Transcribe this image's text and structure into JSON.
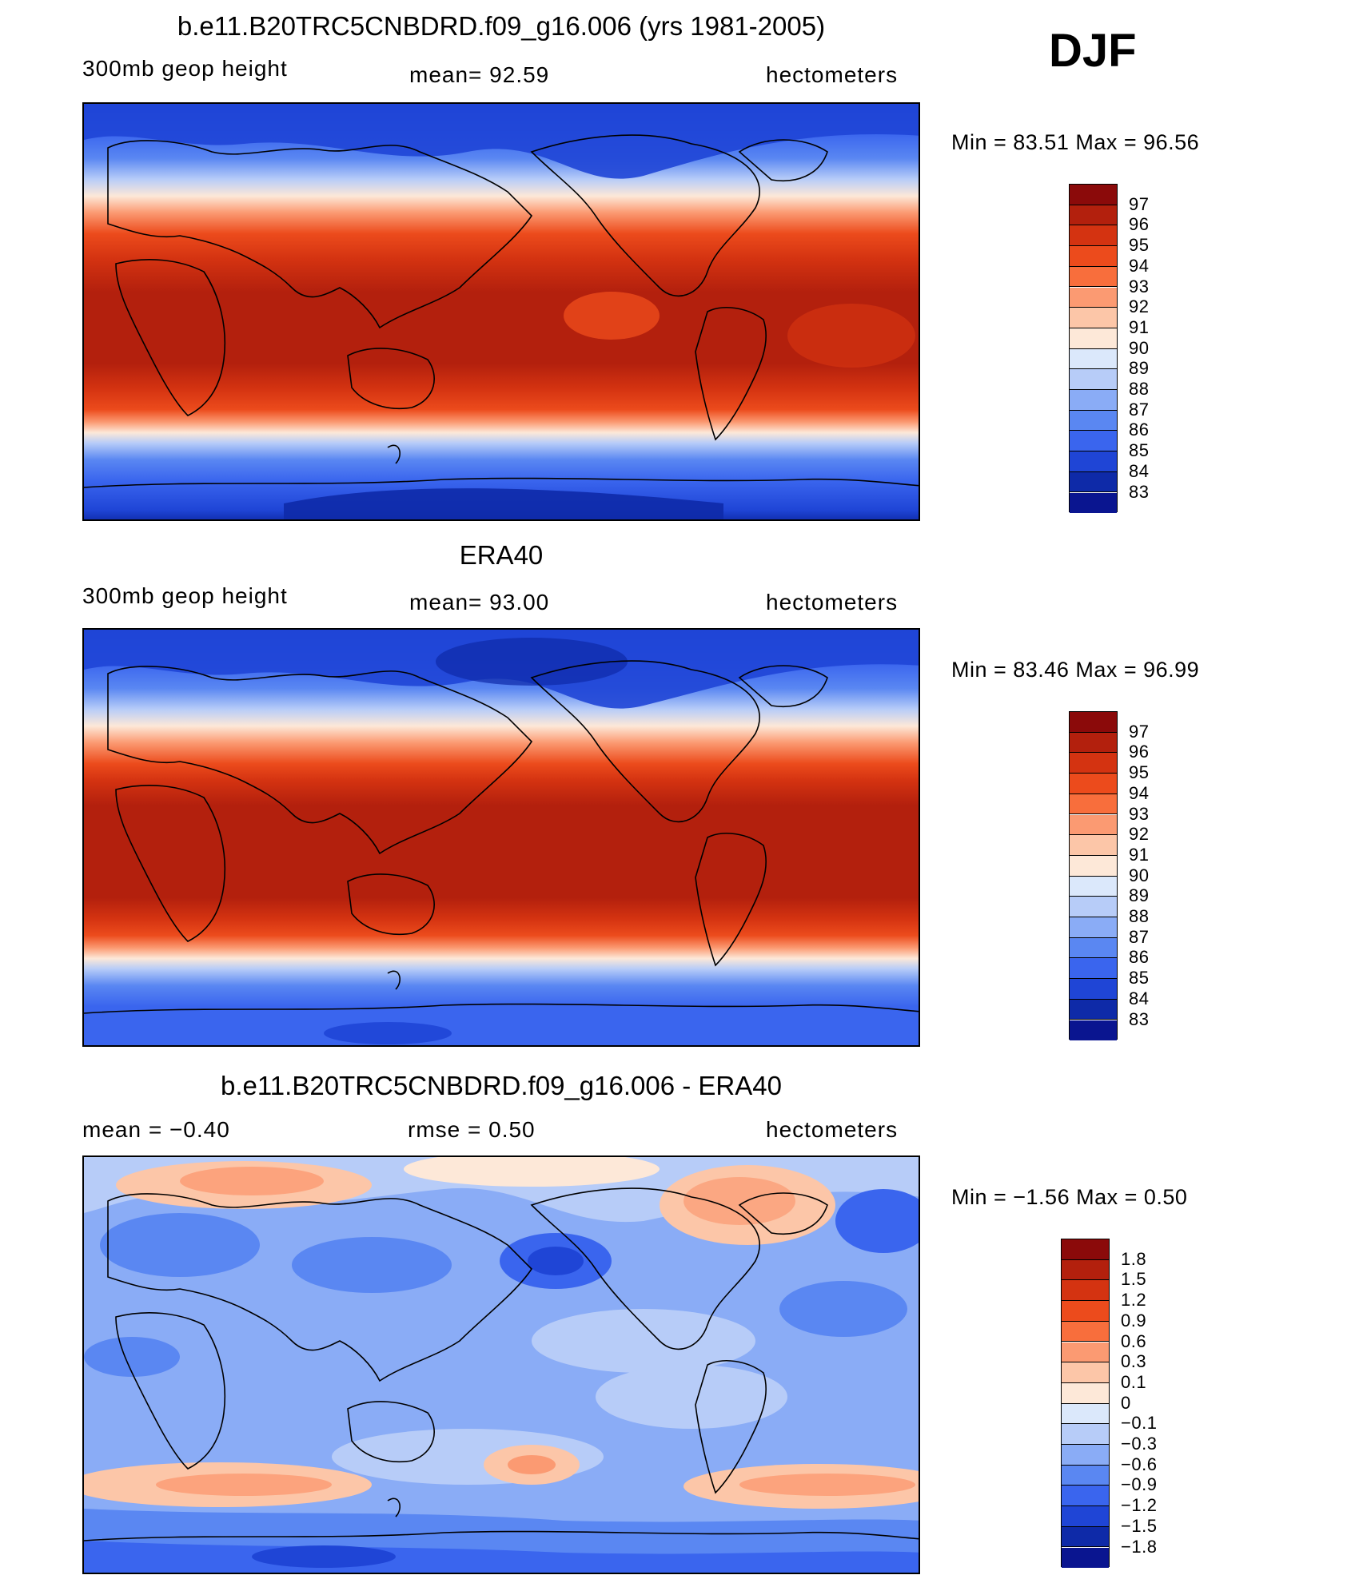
{
  "season": "DJF",
  "panels": [
    {
      "title": "b.e11.B20TRC5CNBDRD.f09_g16.006 (yrs 1981-2005)",
      "left_label": "300mb  geop  height",
      "center_label": "mean=   92.59",
      "right_label": "hectometers",
      "minmax": "Min  =    83.51  Max  =    96.56",
      "colorbar": {
        "labels": [
          "97",
          "96",
          "95",
          "94",
          "93",
          "92",
          "91",
          "90",
          "89",
          "88",
          "87",
          "86",
          "85",
          "84",
          "83"
        ],
        "colors": [
          "#8b0a0a",
          "#b3200d",
          "#d43311",
          "#ec4b1c",
          "#f86e3c",
          "#fb9a72",
          "#fcc6a8",
          "#fde8d8",
          "#dbe8fb",
          "#b7ccf8",
          "#8aacf6",
          "#5a87f2",
          "#3a65ee",
          "#1f45d6",
          "#0e2aa8",
          "#0a1590"
        ]
      }
    },
    {
      "title": "ERA40",
      "left_label": "300mb  geop  height",
      "center_label": "mean=   93.00",
      "right_label": "hectometers",
      "minmax": "Min  =    83.46  Max  =    96.99",
      "colorbar": {
        "labels": [
          "97",
          "96",
          "95",
          "94",
          "93",
          "92",
          "91",
          "90",
          "89",
          "88",
          "87",
          "86",
          "85",
          "84",
          "83"
        ],
        "colors": [
          "#8b0a0a",
          "#b3200d",
          "#d43311",
          "#ec4b1c",
          "#f86e3c",
          "#fb9a72",
          "#fcc6a8",
          "#fde8d8",
          "#dbe8fb",
          "#b7ccf8",
          "#8aacf6",
          "#5a87f2",
          "#3a65ee",
          "#1f45d6",
          "#0e2aa8",
          "#0a1590"
        ]
      }
    },
    {
      "title": "b.e11.B20TRC5CNBDRD.f09_g16.006 - ERA40",
      "left_label": "mean  =    −0.40",
      "center_label": "rmse  =     0.50",
      "right_label": "hectometers",
      "minmax": "Min  =   −1.56  Max  =     0.50",
      "colorbar": {
        "labels": [
          "1.8",
          "1.5",
          "1.2",
          "0.9",
          "0.6",
          "0.3",
          "0.1",
          "0",
          "−0.1",
          "−0.3",
          "−0.6",
          "−0.9",
          "−1.2",
          "−1.5",
          "−1.8"
        ],
        "colors": [
          "#8b0a0a",
          "#b3200d",
          "#d43311",
          "#ec4b1c",
          "#f86e3c",
          "#fb9a72",
          "#fcc6a8",
          "#fde8d8",
          "#dbe8fb",
          "#b7ccf8",
          "#8aacf6",
          "#5a87f2",
          "#3a65ee",
          "#1f45d6",
          "#0e2aa8",
          "#0a1590"
        ]
      }
    }
  ]
}
